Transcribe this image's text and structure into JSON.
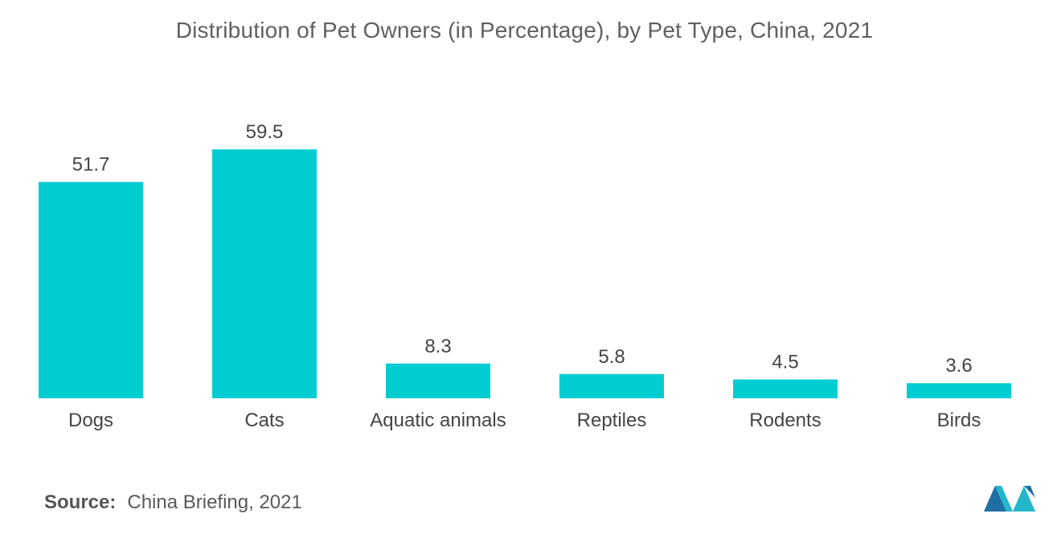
{
  "chart_data": {
    "type": "bar",
    "title": "Distribution of Pet Owners (in Percentage), by Pet Type, China, 2021",
    "categories": [
      "Dogs",
      "Cats",
      "Aquatic animals",
      "Reptiles",
      "Rodents",
      "Birds"
    ],
    "values": [
      51.7,
      59.5,
      8.3,
      5.8,
      4.5,
      3.6
    ],
    "value_labels": [
      "51.7",
      "59.5",
      "8.3",
      "5.8",
      "4.5",
      "3.6"
    ],
    "ylim": [
      0,
      59.5
    ],
    "grid": false,
    "colors": {
      "bar": "#00CDD2"
    }
  },
  "footer": {
    "source_label": "Source:",
    "source_text": "China Briefing, 2021"
  },
  "logo": {
    "icon": "mordor-intelligence-logo",
    "colors": [
      "#1E6FA3",
      "#22B7C9"
    ]
  }
}
